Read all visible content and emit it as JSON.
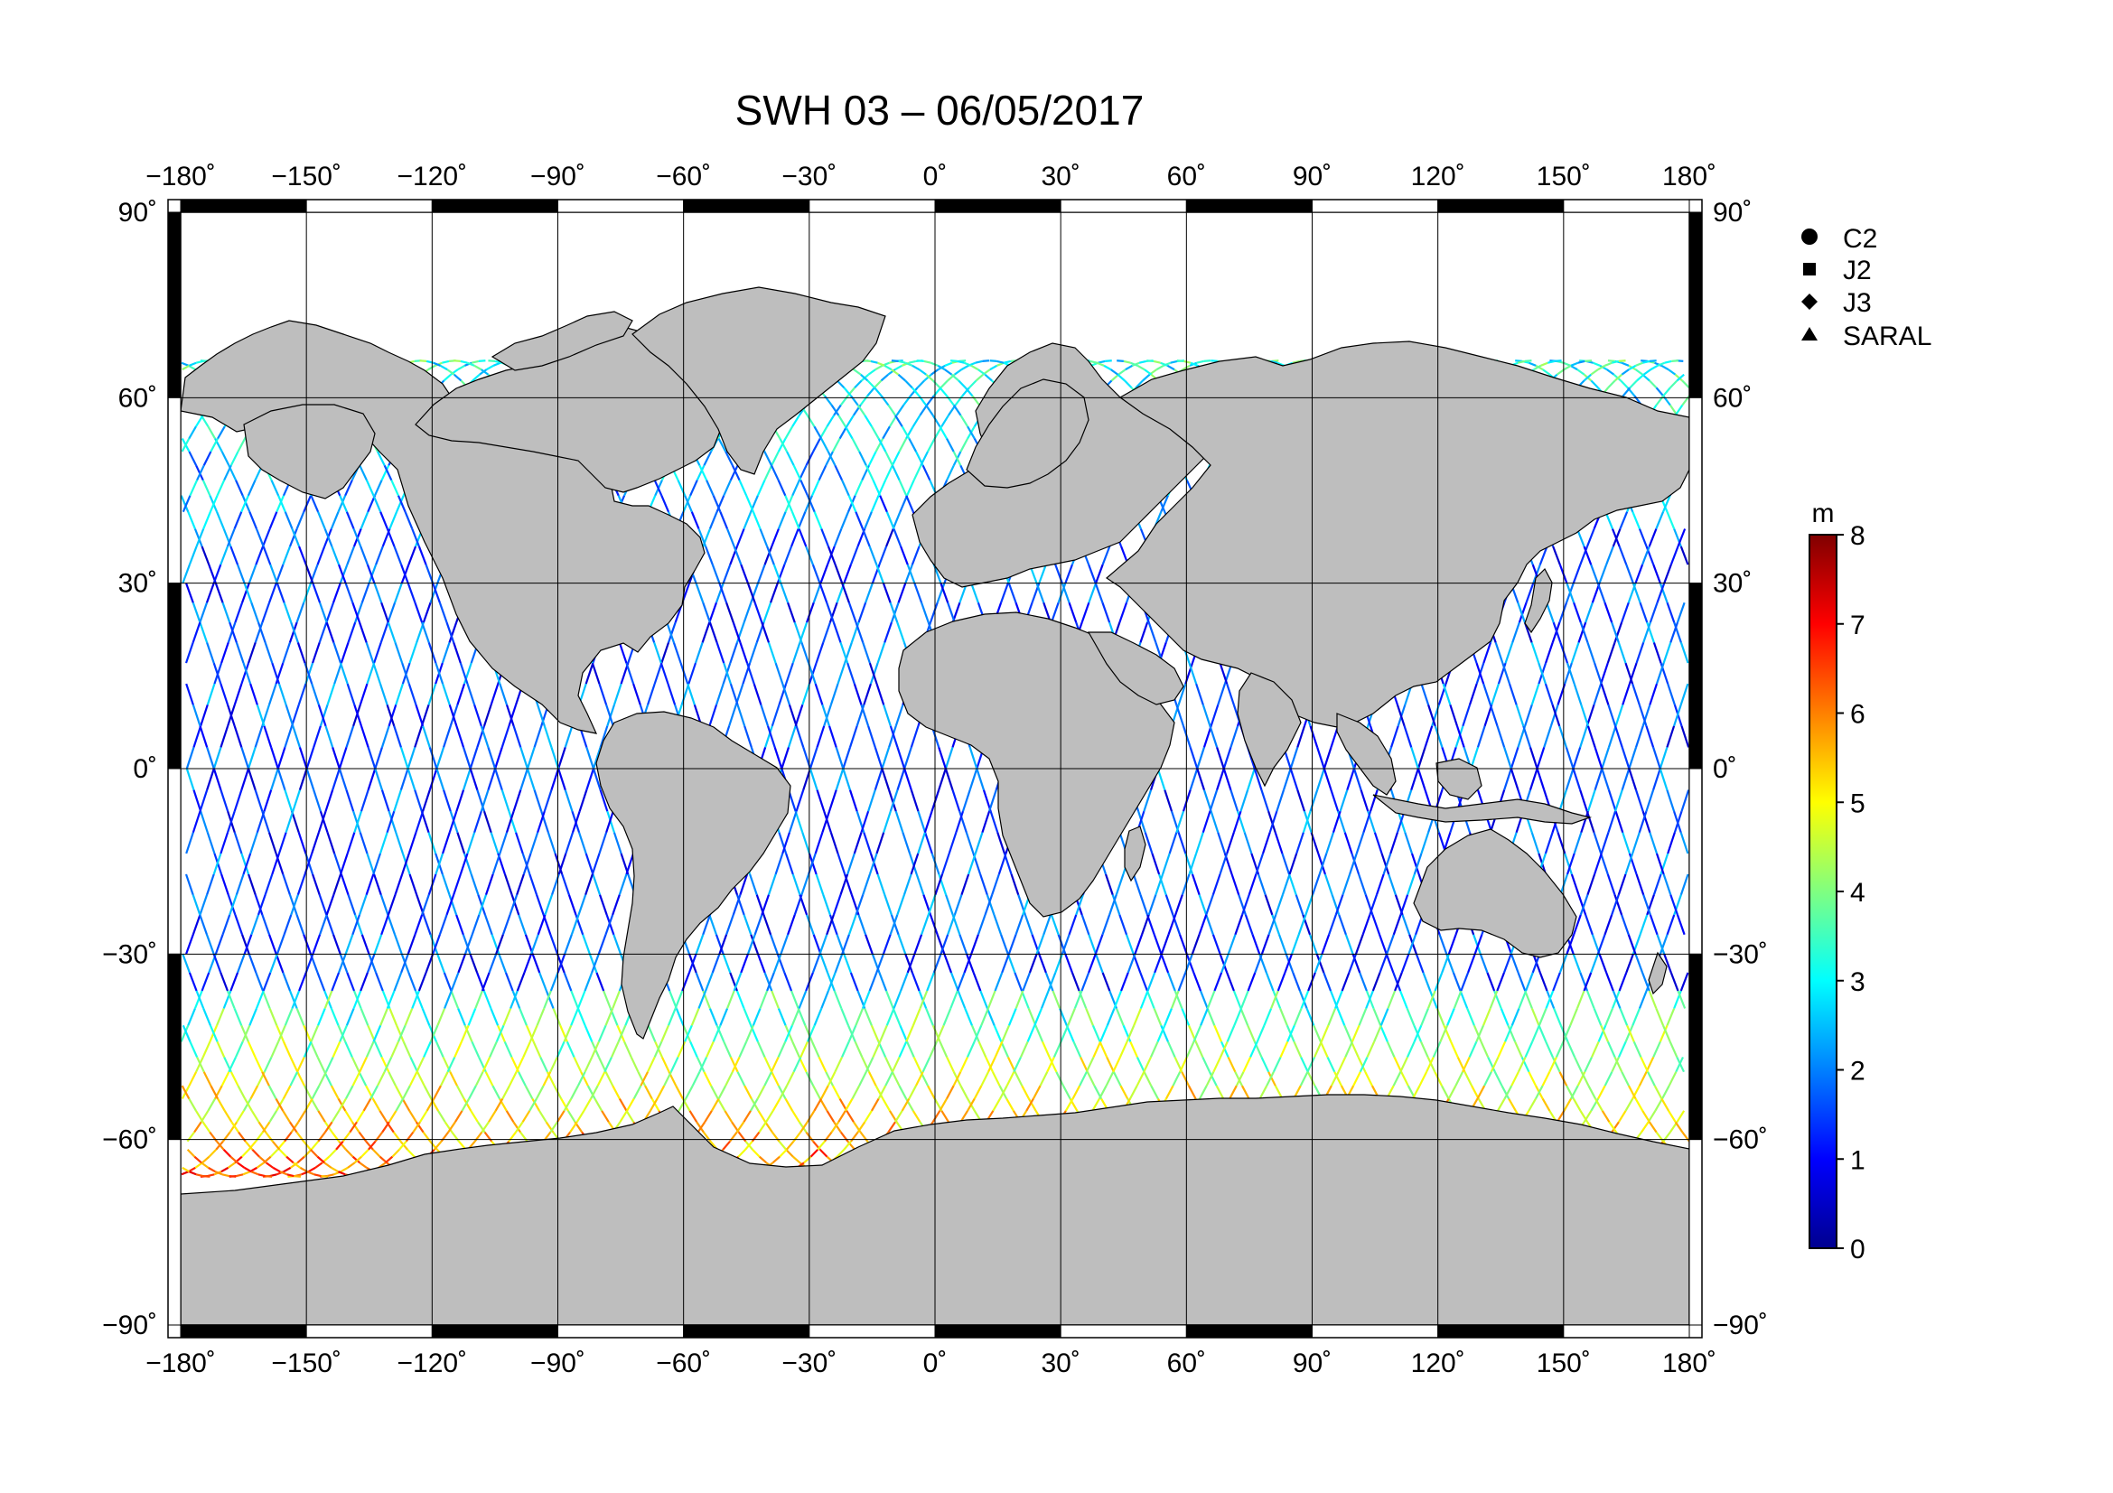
{
  "title": "SWH 03 – 06/05/2017",
  "map": {
    "lon_ticks": [
      -180,
      -150,
      -120,
      -90,
      -60,
      -30,
      0,
      30,
      60,
      90,
      120,
      150,
      180
    ],
    "lat_ticks": [
      90,
      60,
      30,
      0,
      -30,
      -60,
      -90
    ],
    "lon_labels": [
      "−180˚",
      "−150˚",
      "−120˚",
      "−90˚",
      "−60˚",
      "−30˚",
      "0˚",
      "30˚",
      "60˚",
      "90˚",
      "120˚",
      "150˚",
      "180˚"
    ],
    "lat_labels": [
      "90˚",
      "60˚",
      "30˚",
      "0˚",
      "−30˚",
      "−60˚",
      "−90˚"
    ],
    "land_color": "#bebebe",
    "ocean_color": "#ffffff"
  },
  "legend": {
    "items": [
      {
        "label": "C2",
        "symbol": "circle"
      },
      {
        "label": "J2",
        "symbol": "square"
      },
      {
        "label": "J3",
        "symbol": "diamond"
      },
      {
        "label": "SARAL",
        "symbol": "triangle"
      }
    ]
  },
  "colorbar": {
    "unit": "m",
    "min": 0,
    "max": 8,
    "tick_labels": [
      "0",
      "1",
      "2",
      "3",
      "4",
      "5",
      "6",
      "7",
      "8"
    ],
    "colors": [
      "#00008f",
      "#0000ff",
      "#0080ff",
      "#00ffff",
      "#80ff80",
      "#ffff00",
      "#ff8000",
      "#ff0000",
      "#800000"
    ]
  }
}
